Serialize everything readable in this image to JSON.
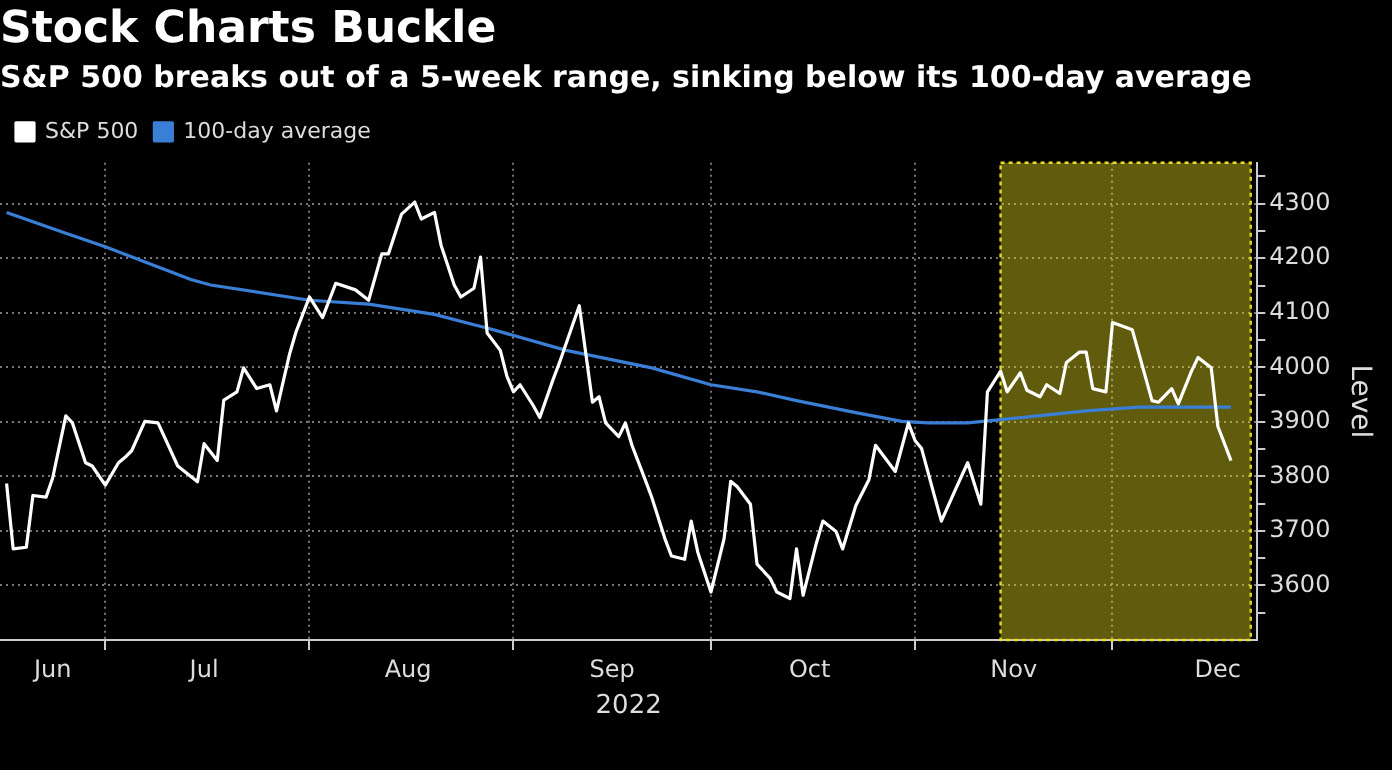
{
  "chart_data": {
    "type": "line",
    "title": "Stock Charts Buckle",
    "subtitle": "S&P 500 breaks out of a 5-week range, sinking below its 100-day average",
    "xlabel": "2022",
    "ylabel": "Level",
    "legend": "top left",
    "grid": true,
    "xlim": [
      "2022-06-15",
      "2022-12-23"
    ],
    "xticks": [
      {
        "value": "2022-06-23",
        "label": "Jun"
      },
      {
        "value": "2022-07-01",
        "label": null
      },
      {
        "value": "2022-07-16",
        "label": "Jul"
      },
      {
        "value": "2022-08-01",
        "label": null
      },
      {
        "value": "2022-08-16",
        "label": "Aug"
      },
      {
        "value": "2022-09-01",
        "label": null
      },
      {
        "value": "2022-09-16",
        "label": "Sep"
      },
      {
        "value": "2022-10-01",
        "label": null
      },
      {
        "value": "2022-10-16",
        "label": "Oct"
      },
      {
        "value": "2022-11-01",
        "label": null
      },
      {
        "value": "2022-11-16",
        "label": "Nov"
      },
      {
        "value": "2022-12-01",
        "label": null
      },
      {
        "value": "2022-12-17",
        "label": "Dec"
      }
    ],
    "ylim": [
      3500,
      4375
    ],
    "yticks": [
      {
        "value": 3550,
        "label": null
      },
      3600,
      {
        "value": 3650,
        "label": null
      },
      3700,
      {
        "value": 3750,
        "label": null
      },
      3800,
      {
        "value": 3850,
        "label": null
      },
      3900,
      {
        "value": 3950,
        "label": null
      },
      4000,
      {
        "value": 4050,
        "label": null
      },
      4100,
      {
        "value": 4150,
        "label": null
      },
      4200,
      {
        "value": 4250,
        "label": null
      },
      4300,
      {
        "value": 4350,
        "label": null
      }
    ],
    "bands": [
      {
        "axis": "x",
        "from": "2022-11-14",
        "to": "2022-12-22",
        "color": "#e8dc1e"
      }
    ],
    "series": [
      {
        "name": "S&P 500",
        "color": "#ffffff",
        "x": [
          "2022-06-16",
          "2022-06-17",
          "2022-06-19",
          "2022-06-20",
          "2022-06-22",
          "2022-06-23",
          "2022-06-25",
          "2022-06-26",
          "2022-06-28",
          "2022-06-29",
          "2022-07-01",
          "2022-07-03",
          "2022-07-04",
          "2022-07-05",
          "2022-07-07",
          "2022-07-09",
          "2022-07-12",
          "2022-07-15",
          "2022-07-16",
          "2022-07-18",
          "2022-07-19",
          "2022-07-21",
          "2022-07-22",
          "2022-07-24",
          "2022-07-26",
          "2022-07-27",
          "2022-07-29",
          "2022-07-30",
          "2022-08-01",
          "2022-08-03",
          "2022-08-05",
          "2022-08-08",
          "2022-08-10",
          "2022-08-12",
          "2022-08-13",
          "2022-08-15",
          "2022-08-17",
          "2022-08-18",
          "2022-08-20",
          "2022-08-21",
          "2022-08-23",
          "2022-08-24",
          "2022-08-26",
          "2022-08-27",
          "2022-08-28",
          "2022-08-30",
          "2022-08-31",
          "2022-09-01",
          "2022-09-02",
          "2022-09-04",
          "2022-09-05",
          "2022-09-07",
          "2022-09-08",
          "2022-09-11",
          "2022-09-13",
          "2022-09-14",
          "2022-09-15",
          "2022-09-17",
          "2022-09-18",
          "2022-09-19",
          "2022-09-21",
          "2022-09-22",
          "2022-09-24",
          "2022-09-25",
          "2022-09-27",
          "2022-09-28",
          "2022-09-29",
          "2022-10-01",
          "2022-10-03",
          "2022-10-04",
          "2022-10-05",
          "2022-10-07",
          "2022-10-08",
          "2022-10-10",
          "2022-10-11",
          "2022-10-13",
          "2022-10-14",
          "2022-10-15",
          "2022-10-17",
          "2022-10-18",
          "2022-10-20",
          "2022-10-21",
          "2022-10-23",
          "2022-10-25",
          "2022-10-26",
          "2022-10-29",
          "2022-10-31",
          "2022-11-01",
          "2022-11-02",
          "2022-11-04",
          "2022-11-05",
          "2022-11-07",
          "2022-11-09",
          "2022-11-11",
          "2022-11-12",
          "2022-11-14",
          "2022-11-15",
          "2022-11-17",
          "2022-11-18",
          "2022-11-20",
          "2022-11-21",
          "2022-11-23",
          "2022-11-24",
          "2022-11-26",
          "2022-11-27",
          "2022-11-28",
          "2022-11-30",
          "2022-12-01",
          "2022-12-04",
          "2022-12-07",
          "2022-12-08",
          "2022-12-10",
          "2022-12-11",
          "2022-12-13",
          "2022-12-14",
          "2022-12-16",
          "2022-12-17",
          "2022-12-19"
        ],
        "values": [
          3787,
          3667,
          3670,
          3765,
          3762,
          3797,
          3911,
          3898,
          3825,
          3819,
          3784,
          3825,
          3835,
          3847,
          3901,
          3898,
          3819,
          3790,
          3860,
          3829,
          3940,
          3955,
          3999,
          3961,
          3968,
          3920,
          4025,
          4066,
          4129,
          4091,
          4154,
          4142,
          4123,
          4208,
          4208,
          4281,
          4303,
          4272,
          4284,
          4224,
          4151,
          4129,
          4145,
          4202,
          4063,
          4031,
          3984,
          3955,
          3968,
          3930,
          3908,
          3977,
          4009,
          4113,
          3936,
          3946,
          3898,
          3873,
          3898,
          3857,
          3794,
          3762,
          3686,
          3654,
          3648,
          3718,
          3661,
          3588,
          3686,
          3791,
          3781,
          3749,
          3639,
          3613,
          3588,
          3576,
          3667,
          3582,
          3677,
          3718,
          3699,
          3667,
          3746,
          3794,
          3857,
          3809,
          3898,
          3866,
          3851,
          3762,
          3718,
          3772,
          3825,
          3749,
          3955,
          3993,
          3955,
          3990,
          3958,
          3946,
          3968,
          3952,
          4009,
          4028,
          4028,
          3961,
          3955,
          4082,
          4069,
          3939,
          3936,
          3961,
          3933,
          3993,
          4018,
          3999,
          3892,
          3829
        ]
      },
      {
        "name": "100-day average",
        "color": "#3a7fd5",
        "x": [
          "2022-06-16",
          "2022-06-25",
          "2022-07-01",
          "2022-07-14",
          "2022-07-17",
          "2022-08-01",
          "2022-08-10",
          "2022-08-20",
          "2022-08-26",
          "2022-08-28",
          "2022-09-09",
          "2022-09-22",
          "2022-10-01",
          "2022-10-08",
          "2022-10-14",
          "2022-10-23",
          "2022-10-30",
          "2022-11-03",
          "2022-11-09",
          "2022-11-14",
          "2022-11-27",
          "2022-12-05",
          "2022-12-19"
        ],
        "values": [
          4284,
          4246,
          4221,
          4161,
          4151,
          4123,
          4116,
          4097,
          4078,
          4072,
          4031,
          3999,
          3968,
          3955,
          3939,
          3917,
          3901,
          3898,
          3898,
          3904,
          3920,
          3927,
          3927
        ]
      }
    ]
  }
}
